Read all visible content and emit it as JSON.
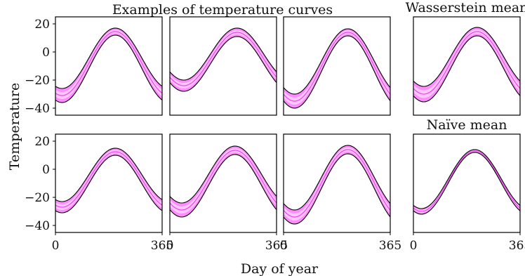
{
  "chart_data": {
    "type": "area",
    "suptitle": "Examples of temperature curves",
    "ylabel": "Temperature",
    "xlabel": "Day of year",
    "xlim": [
      0,
      365
    ],
    "ylim": [
      -45,
      25
    ],
    "xticks": [
      0,
      365
    ],
    "xtick_labels": [
      "0",
      "365"
    ],
    "yticks": [
      20,
      0,
      -20,
      -40
    ],
    "ytick_labels": [
      "20",
      "0",
      "−20",
      "−40"
    ],
    "grid": false,
    "band_colors": {
      "outer": "#ff8cff",
      "inner": "#ffc6ff",
      "mid_line": "#ee44ee",
      "edge": "#000000"
    },
    "panels": [
      {
        "row": 0,
        "col": 0,
        "title": "",
        "curve": {
          "peak_day": 205,
          "low_mean": -31,
          "low_width": 10,
          "high_mean": 14.5,
          "high_width": 5
        }
      },
      {
        "row": 0,
        "col": 1,
        "title": "",
        "curve": {
          "peak_day": 230,
          "low_mean": -24,
          "low_width": 8,
          "high_mean": 14,
          "high_width": 6
        }
      },
      {
        "row": 0,
        "col": 2,
        "title": "",
        "curve": {
          "peak_day": 220,
          "low_mean": -35,
          "low_width": 10,
          "high_mean": 14,
          "high_width": 5
        }
      },
      {
        "row": 0,
        "col": 3,
        "title": "Wasserstein mean",
        "curve": {
          "peak_day": 218,
          "low_mean": -30,
          "low_width": 11,
          "high_mean": 14.5,
          "high_width": 6
        }
      },
      {
        "row": 1,
        "col": 0,
        "title": "",
        "curve": {
          "peak_day": 205,
          "low_mean": -27,
          "low_width": 8,
          "high_mean": 12.5,
          "high_width": 5
        }
      },
      {
        "row": 1,
        "col": 1,
        "title": "",
        "curve": {
          "peak_day": 223,
          "low_mean": -29,
          "low_width": 10,
          "high_mean": 13.5,
          "high_width": 6
        }
      },
      {
        "row": 1,
        "col": 2,
        "title": "",
        "curve": {
          "peak_day": 220,
          "low_mean": -34,
          "low_width": 10,
          "high_mean": 14,
          "high_width": 6
        }
      },
      {
        "row": 1,
        "col": 3,
        "title": "Naïve mean",
        "curve": {
          "peak_day": 210,
          "low_mean": -30,
          "low_width": 4,
          "high_mean": 13,
          "high_width": 2
        }
      }
    ]
  }
}
